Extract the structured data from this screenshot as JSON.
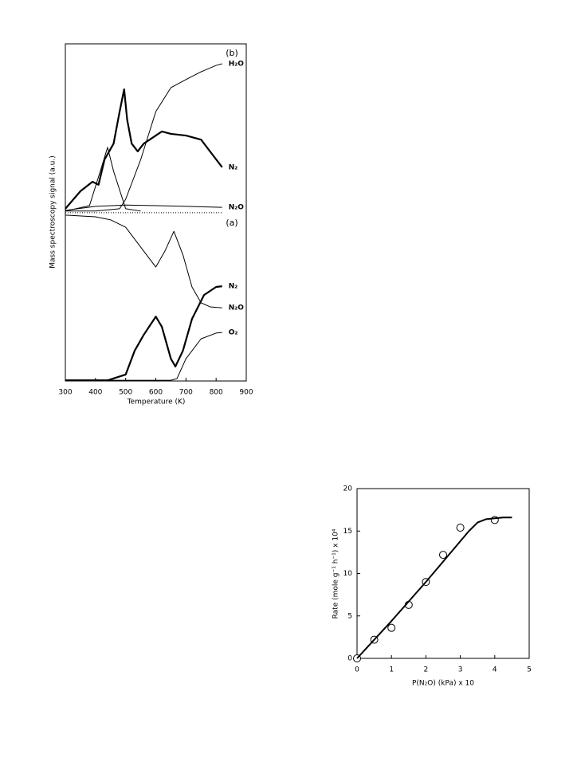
{
  "chart_data": [
    {
      "type": "line",
      "xlabel": "Temperature (K)",
      "ylabel": "Mass spectroscopy signal (a.u.)",
      "xlim": [
        300,
        900
      ],
      "xticks": [
        300,
        400,
        500,
        600,
        700,
        800,
        900
      ],
      "ylim": [
        0,
        100
      ],
      "annotations": [
        "(b)",
        "(a)"
      ],
      "series": [
        {
          "name": "H₂O",
          "color": "#000",
          "line_width": 1,
          "x": [
            300,
            400,
            480,
            500,
            550,
            600,
            650,
            700,
            750,
            800,
            820
          ],
          "values": [
            50.4,
            50.4,
            51.1,
            53.9,
            65.7,
            79.9,
            87.0,
            89.4,
            91.7,
            93.6,
            94.1
          ]
        },
        {
          "name": "N₂",
          "color": "#000",
          "line_width": 2.2,
          "x": [
            300,
            350,
            390,
            410,
            430,
            460,
            480,
            495,
            505,
            520,
            540,
            560,
            600,
            620,
            650,
            700,
            750,
            790,
            820
          ],
          "values": [
            51.1,
            56.3,
            59.1,
            58.2,
            65.7,
            70.4,
            79.9,
            86.5,
            77.5,
            70.4,
            68.1,
            70.4,
            72.8,
            74.0,
            73.3,
            72.8,
            71.6,
            66.9,
            63.4
          ]
        },
        {
          "color": "#000",
          "line_width": 1,
          "x": [
            300,
            380,
            420,
            440,
            460,
            500,
            550
          ],
          "values": [
            50.4,
            52.0,
            63.4,
            69.3,
            62.2,
            51.1,
            50.4
          ]
        },
        {
          "name": "N₂O",
          "color": "#000",
          "line_width": 1,
          "x": [
            300,
            400,
            500,
            600,
            700,
            820
          ],
          "values": [
            50.6,
            51.8,
            52.2,
            52.0,
            51.8,
            51.5
          ]
        },
        {
          "color": "#000",
          "line_width": 1,
          "dash": "dotted",
          "x": [
            300,
            820
          ],
          "values": [
            49.9,
            49.9
          ]
        },
        {
          "name": "N₂",
          "color": "#000",
          "line_width": 2.2,
          "x": [
            300,
            440,
            500,
            530,
            560,
            600,
            620,
            650,
            665,
            690,
            720,
            760,
            800,
            820
          ],
          "values": [
            0.2,
            0.2,
            1.9,
            9.0,
            13.7,
            19.1,
            16.1,
            6.6,
            4.3,
            9.0,
            18.4,
            25.5,
            27.9,
            28.1
          ]
        },
        {
          "name": "N₂O",
          "color": "#000",
          "line_width": 1,
          "x": [
            300,
            400,
            450,
            500,
            550,
            600,
            630,
            660,
            690,
            720,
            750,
            780,
            820
          ],
          "values": [
            49.2,
            48.7,
            47.8,
            45.6,
            39.7,
            33.8,
            38.5,
            44.4,
            37.4,
            27.9,
            23.2,
            22.0,
            21.7
          ]
        },
        {
          "name": "O₂",
          "color": "#000",
          "line_width": 1,
          "x": [
            300,
            650,
            670,
            700,
            750,
            800,
            820
          ],
          "values": [
            0.2,
            0.2,
            0.7,
            6.6,
            12.5,
            14.2,
            14.4
          ]
        }
      ]
    },
    {
      "type": "scatter",
      "xlabel": "P(N₂O)  (kPa) x 10",
      "ylabel": "Rate (mole g⁻¹ h⁻¹) x 10⁴",
      "xlim": [
        0,
        5
      ],
      "xticks": [
        0,
        1,
        2,
        3,
        4,
        5
      ],
      "ylim": [
        0,
        20
      ],
      "yticks": [
        0,
        5,
        10,
        15,
        20
      ],
      "series": [
        {
          "color": "#000",
          "marker": "circle",
          "x": [
            0,
            0.5,
            1,
            1.5,
            2,
            2.5,
            3,
            4
          ],
          "values": [
            0,
            2.2,
            3.6,
            6.3,
            9.0,
            12.2,
            15.4,
            16.3
          ]
        },
        {
          "color": "#000",
          "line_width": 2,
          "x": [
            0,
            0.5,
            1,
            1.5,
            2,
            2.5,
            3,
            3.25,
            3.5,
            3.75,
            4,
            4.25,
            4.5
          ],
          "values": [
            0,
            2.2,
            4.4,
            6.7,
            9.0,
            11.4,
            13.8,
            15.0,
            16.0,
            16.4,
            16.5,
            16.6,
            16.6
          ]
        }
      ]
    }
  ]
}
